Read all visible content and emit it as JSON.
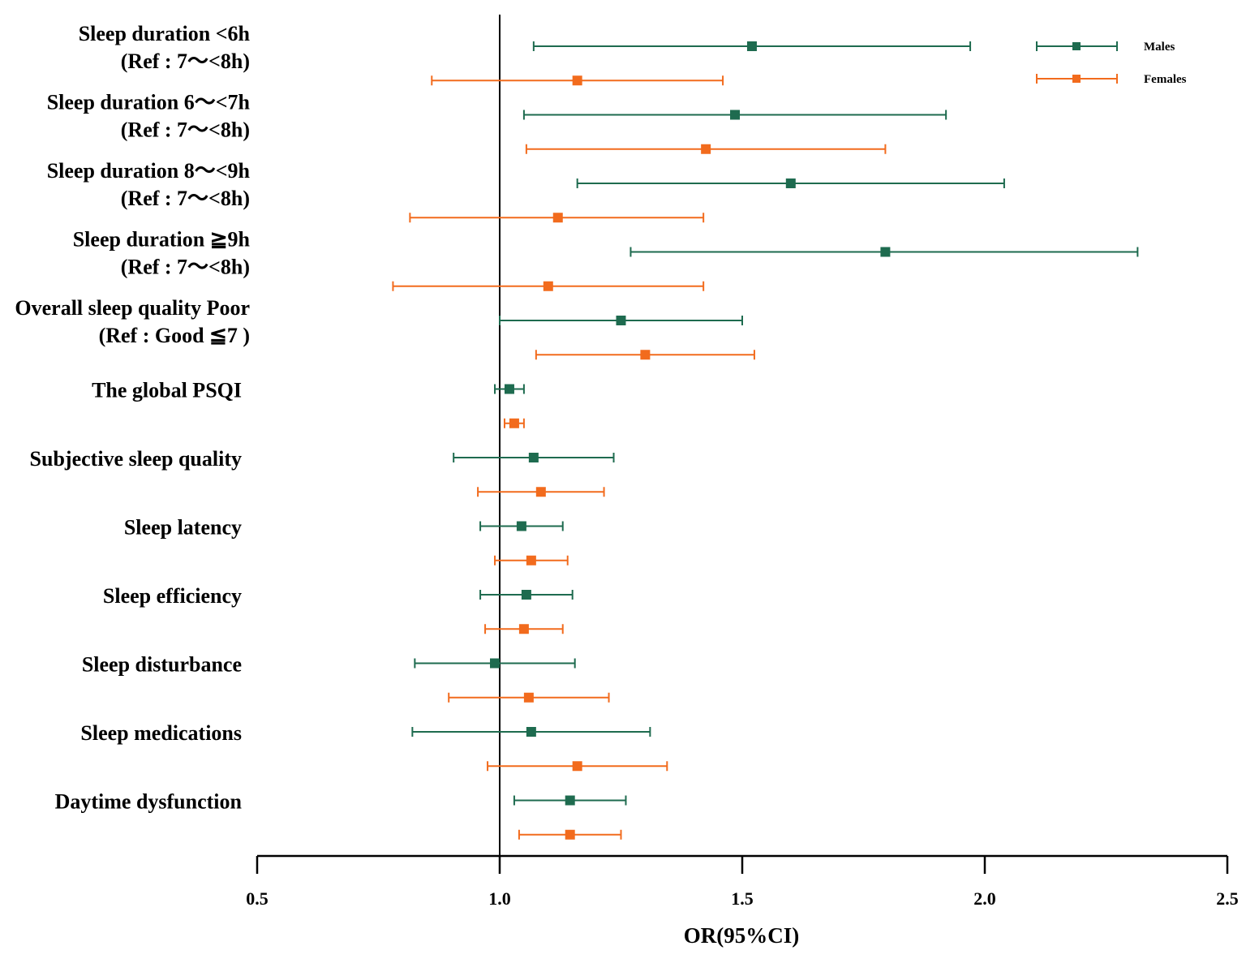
{
  "chart_data": {
    "type": "forest",
    "xlabel": "OR(95%CI)",
    "xlim": [
      0.5,
      2.5
    ],
    "xticks": [
      "0.5",
      "1.0",
      "1.5",
      "2.0",
      "2.5"
    ],
    "reference_line": 1.0,
    "series": [
      {
        "name": "Males",
        "color": "#1e6b4f"
      },
      {
        "name": "Females",
        "color": "#f26b1d"
      }
    ],
    "legend_position": "top-right",
    "groups": [
      {
        "label_lines": [
          "Sleep duration <6h",
          "(Ref : 7～<8h)"
        ],
        "males": {
          "or": 1.52,
          "lo": 1.07,
          "hi": 1.97
        },
        "females": {
          "or": 1.16,
          "lo": 0.86,
          "hi": 1.46
        }
      },
      {
        "label_lines": [
          "Sleep duration 6～<7h",
          "(Ref : 7～<8h)"
        ],
        "males": {
          "or": 1.485,
          "lo": 1.05,
          "hi": 1.92
        },
        "females": {
          "or": 1.425,
          "lo": 1.055,
          "hi": 1.795
        }
      },
      {
        "label_lines": [
          "Sleep duration 8～<9h",
          "(Ref : 7～<8h)"
        ],
        "males": {
          "or": 1.6,
          "lo": 1.16,
          "hi": 2.04
        },
        "females": {
          "or": 1.12,
          "lo": 0.815,
          "hi": 1.42
        }
      },
      {
        "label_lines": [
          "Sleep duration ≧9h",
          "(Ref : 7～<8h)"
        ],
        "males": {
          "or": 1.795,
          "lo": 1.27,
          "hi": 2.315
        },
        "females": {
          "or": 1.1,
          "lo": 0.78,
          "hi": 1.42
        }
      },
      {
        "label_lines": [
          "Overall sleep quality Poor",
          "(Ref : Good ≦7 )"
        ],
        "males": {
          "or": 1.25,
          "lo": 1.0,
          "hi": 1.5
        },
        "females": {
          "or": 1.3,
          "lo": 1.075,
          "hi": 1.525
        }
      },
      {
        "label_lines": [
          "The global PSQI"
        ],
        "males": {
          "or": 1.02,
          "lo": 0.99,
          "hi": 1.05
        },
        "females": {
          "or": 1.03,
          "lo": 1.01,
          "hi": 1.05
        }
      },
      {
        "label_lines": [
          "Subjective sleep quality"
        ],
        "males": {
          "or": 1.07,
          "lo": 0.905,
          "hi": 1.235
        },
        "females": {
          "or": 1.085,
          "lo": 0.955,
          "hi": 1.215
        }
      },
      {
        "label_lines": [
          "Sleep latency"
        ],
        "males": {
          "or": 1.045,
          "lo": 0.96,
          "hi": 1.13
        },
        "females": {
          "or": 1.065,
          "lo": 0.99,
          "hi": 1.14
        }
      },
      {
        "label_lines": [
          "Sleep efficiency"
        ],
        "males": {
          "or": 1.055,
          "lo": 0.96,
          "hi": 1.15
        },
        "females": {
          "or": 1.05,
          "lo": 0.97,
          "hi": 1.13
        }
      },
      {
        "label_lines": [
          "Sleep disturbance"
        ],
        "males": {
          "or": 0.99,
          "lo": 0.825,
          "hi": 1.155
        },
        "females": {
          "or": 1.06,
          "lo": 0.895,
          "hi": 1.225
        }
      },
      {
        "label_lines": [
          "Sleep medications"
        ],
        "males": {
          "or": 1.065,
          "lo": 0.82,
          "hi": 1.31
        },
        "females": {
          "or": 1.16,
          "lo": 0.975,
          "hi": 1.345
        }
      },
      {
        "label_lines": [
          "Daytime dysfunction"
        ],
        "males": {
          "or": 1.145,
          "lo": 1.03,
          "hi": 1.26
        },
        "females": {
          "or": 1.145,
          "lo": 1.04,
          "hi": 1.25
        }
      }
    ]
  }
}
